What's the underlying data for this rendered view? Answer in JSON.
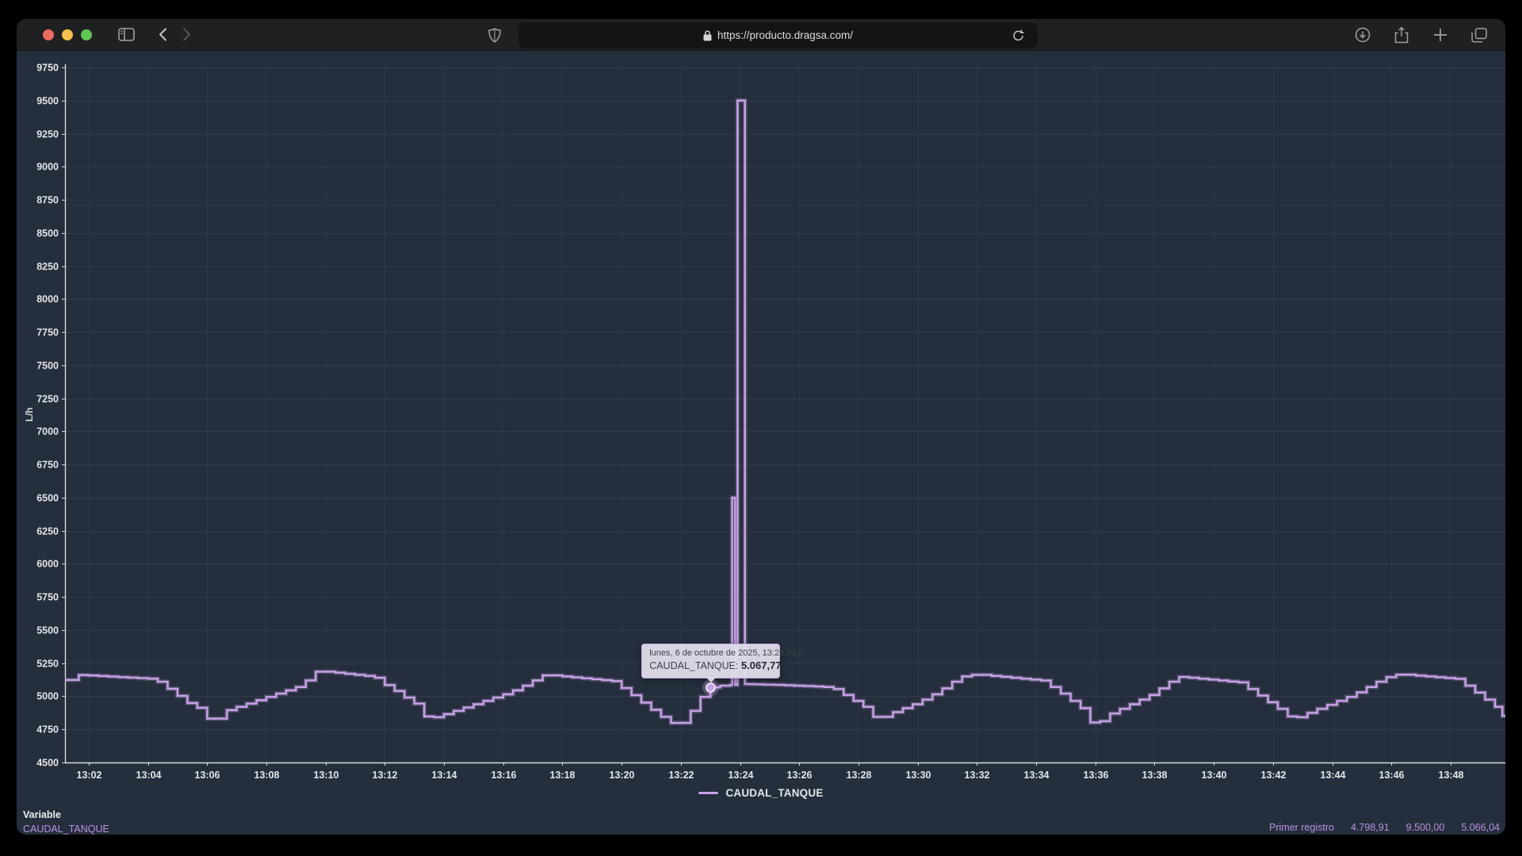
{
  "browser": {
    "url": "https://producto.dragsa.com/",
    "traffic_lights": {
      "close": "#ed6a5e",
      "minimize": "#f5bf4f",
      "zoom": "#62c554"
    },
    "icons": [
      "sidebar-toggle",
      "back",
      "forward",
      "privacy-shield",
      "lock",
      "reload",
      "downloads",
      "share",
      "new-tab",
      "tab-overview"
    ]
  },
  "chart_data": {
    "type": "line",
    "step": "end",
    "title": "",
    "xlabel": "",
    "ylabel": "L/h",
    "ylim": [
      4500,
      9750
    ],
    "y_tick_step": 250,
    "x_ticks": [
      "13:02",
      "13:04",
      "13:06",
      "13:08",
      "13:10",
      "13:12",
      "13:14",
      "13:16",
      "13:18",
      "13:20",
      "13:22",
      "13:24",
      "13:26",
      "13:28",
      "13:30",
      "13:32",
      "13:34",
      "13:36",
      "13:38",
      "13:40",
      "13:42",
      "13:44",
      "13:46",
      "13:48"
    ],
    "x_tick_first_seconds": 120,
    "x_tick_interval_seconds": 120,
    "time_domain_seconds": [
      72,
      2991
    ],
    "grid": true,
    "legend_position": "bottom",
    "series": [
      {
        "name": "CAUDAL_TANQUE",
        "color": "#c9a3e8",
        "points_t_sec_value": [
          [
            60,
            5123
          ],
          [
            80,
            5123
          ],
          [
            100,
            5160
          ],
          [
            120,
            5157
          ],
          [
            140,
            5153
          ],
          [
            160,
            5149
          ],
          [
            180,
            5145
          ],
          [
            200,
            5141
          ],
          [
            220,
            5137
          ],
          [
            240,
            5133
          ],
          [
            260,
            5110
          ],
          [
            280,
            5057
          ],
          [
            300,
            5003
          ],
          [
            320,
            4949
          ],
          [
            340,
            4913
          ],
          [
            360,
            4831
          ],
          [
            380,
            4831
          ],
          [
            400,
            4895
          ],
          [
            420,
            4920
          ],
          [
            440,
            4945
          ],
          [
            460,
            4970
          ],
          [
            480,
            4995
          ],
          [
            500,
            5020
          ],
          [
            520,
            5045
          ],
          [
            540,
            5070
          ],
          [
            560,
            5120
          ],
          [
            580,
            5186
          ],
          [
            600,
            5186
          ],
          [
            620,
            5178
          ],
          [
            640,
            5170
          ],
          [
            660,
            5162
          ],
          [
            680,
            5154
          ],
          [
            700,
            5140
          ],
          [
            720,
            5085
          ],
          [
            740,
            5040
          ],
          [
            760,
            4990
          ],
          [
            780,
            4945
          ],
          [
            800,
            4848
          ],
          [
            820,
            4842
          ],
          [
            840,
            4865
          ],
          [
            860,
            4890
          ],
          [
            880,
            4915
          ],
          [
            900,
            4940
          ],
          [
            920,
            4965
          ],
          [
            940,
            4990
          ],
          [
            960,
            5015
          ],
          [
            980,
            5045
          ],
          [
            1000,
            5080
          ],
          [
            1020,
            5120
          ],
          [
            1040,
            5158
          ],
          [
            1060,
            5158
          ],
          [
            1080,
            5150
          ],
          [
            1100,
            5143
          ],
          [
            1120,
            5136
          ],
          [
            1140,
            5129
          ],
          [
            1160,
            5122
          ],
          [
            1180,
            5115
          ],
          [
            1200,
            5062
          ],
          [
            1220,
            5008
          ],
          [
            1240,
            4952
          ],
          [
            1260,
            4898
          ],
          [
            1280,
            4845
          ],
          [
            1300,
            4799
          ],
          [
            1320,
            4799
          ],
          [
            1340,
            4890
          ],
          [
            1360,
            4995
          ],
          [
            1380,
            5067.77
          ],
          [
            1400,
            5080
          ],
          [
            1420,
            5085
          ],
          [
            1424,
            6500
          ],
          [
            1430,
            5086
          ],
          [
            1435,
            9500
          ],
          [
            1450,
            5092
          ],
          [
            1470,
            5090
          ],
          [
            1490,
            5088
          ],
          [
            1510,
            5086
          ],
          [
            1530,
            5083
          ],
          [
            1550,
            5080
          ],
          [
            1570,
            5077
          ],
          [
            1590,
            5074
          ],
          [
            1610,
            5070
          ],
          [
            1630,
            5055
          ],
          [
            1650,
            5010
          ],
          [
            1670,
            4965
          ],
          [
            1690,
            4920
          ],
          [
            1710,
            4845
          ],
          [
            1730,
            4845
          ],
          [
            1750,
            4880
          ],
          [
            1770,
            4910
          ],
          [
            1790,
            4940
          ],
          [
            1810,
            4975
          ],
          [
            1830,
            5015
          ],
          [
            1850,
            5060
          ],
          [
            1870,
            5110
          ],
          [
            1890,
            5150
          ],
          [
            1910,
            5162
          ],
          [
            1930,
            5162
          ],
          [
            1950,
            5154
          ],
          [
            1970,
            5147
          ],
          [
            1990,
            5140
          ],
          [
            2010,
            5133
          ],
          [
            2030,
            5126
          ],
          [
            2050,
            5119
          ],
          [
            2070,
            5070
          ],
          [
            2090,
            5020
          ],
          [
            2110,
            4965
          ],
          [
            2130,
            4910
          ],
          [
            2150,
            4802
          ],
          [
            2170,
            4812
          ],
          [
            2190,
            4870
          ],
          [
            2210,
            4905
          ],
          [
            2230,
            4940
          ],
          [
            2250,
            4975
          ],
          [
            2270,
            5010
          ],
          [
            2290,
            5060
          ],
          [
            2310,
            5110
          ],
          [
            2330,
            5146
          ],
          [
            2350,
            5140
          ],
          [
            2370,
            5133
          ],
          [
            2390,
            5126
          ],
          [
            2410,
            5119
          ],
          [
            2430,
            5112
          ],
          [
            2450,
            5105
          ],
          [
            2470,
            5055
          ],
          [
            2490,
            5005
          ],
          [
            2510,
            4955
          ],
          [
            2530,
            4905
          ],
          [
            2550,
            4848
          ],
          [
            2570,
            4842
          ],
          [
            2590,
            4875
          ],
          [
            2610,
            4905
          ],
          [
            2630,
            4935
          ],
          [
            2650,
            4965
          ],
          [
            2670,
            4995
          ],
          [
            2690,
            5030
          ],
          [
            2710,
            5070
          ],
          [
            2730,
            5110
          ],
          [
            2750,
            5145
          ],
          [
            2770,
            5163
          ],
          [
            2790,
            5163
          ],
          [
            2810,
            5156
          ],
          [
            2830,
            5150
          ],
          [
            2850,
            5144
          ],
          [
            2870,
            5138
          ],
          [
            2890,
            5132
          ],
          [
            2910,
            5080
          ],
          [
            2930,
            5028
          ],
          [
            2950,
            4975
          ],
          [
            2970,
            4920
          ],
          [
            2985,
            4852
          ],
          [
            2995,
            4830
          ]
        ]
      }
    ],
    "highlighted_point": {
      "t_sec": 1380,
      "value": 5067.77
    }
  },
  "tooltip": {
    "line1": "lunes, 6 de octubre de 2025, 13:23:00,0",
    "series_label": "CAUDAL_TANQUE:",
    "value": "5.067,77"
  },
  "legend": {
    "label": "CAUDAL_TANQUE"
  },
  "footer": {
    "column_header": "Variable",
    "variable_name": "CAUDAL_TANQUE",
    "stats_label": "Primer registro",
    "stats_values": [
      "4.798,91",
      "9.500,00",
      "5.066,04"
    ],
    "accent_color": "#b793e2"
  },
  "colors": {
    "content_bg": "#252e3c",
    "axis": "#d9dbde",
    "tick_label": "#e3e6ea",
    "grid_h": "rgba(255,255,255,0.065)",
    "grid_v": "rgba(255,255,255,0.04)"
  }
}
